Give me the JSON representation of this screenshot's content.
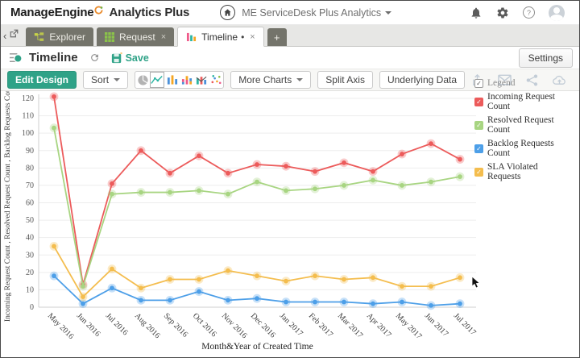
{
  "header": {
    "brand_primary": "ManageEngine",
    "brand_secondary": "Analytics Plus",
    "workspace_label": "ME ServiceDesk Plus Analytics"
  },
  "tabs": {
    "items": [
      {
        "label": "Explorer",
        "active": false
      },
      {
        "label": "Request",
        "active": false,
        "close": "×"
      },
      {
        "label": "Timeline",
        "active": true,
        "modified": "•",
        "close": "×"
      }
    ],
    "new_tab_label": "+"
  },
  "titlebar": {
    "title": "Timeline",
    "save_label": "Save",
    "settings_label": "Settings"
  },
  "toolbar": {
    "edit_design_label": "Edit Design",
    "sort_label": "Sort",
    "more_charts_label": "More Charts",
    "split_axis_label": "Split Axis",
    "underlying_data_label": "Underlying Data"
  },
  "legend": {
    "title": "Legend"
  },
  "icons": {
    "top_right": [
      "bell-icon",
      "gear-icon",
      "help-icon",
      "avatar"
    ],
    "chart_types": [
      "pie-chart-icon",
      "line-chart-icon",
      "bar-chart-icon",
      "stacked-bar-icon",
      "combo-chart-icon",
      "scatter-chart-icon"
    ],
    "toolbar_right": [
      "export-icon",
      "email-icon",
      "share-icon",
      "cloud-upload-icon"
    ]
  },
  "chart_data": {
    "type": "line",
    "x": [
      "May 2016",
      "Jun 2016",
      "Jul 2016",
      "Aug 2016",
      "Sep 2016",
      "Oct 2016",
      "Nov 2016",
      "Dec 2016",
      "Jan 2017",
      "Feb 2017",
      "Mar 2017",
      "Apr 2017",
      "May 2017",
      "Jun 2017",
      "Jul 2017"
    ],
    "series": [
      {
        "name": "Incoming Request Count",
        "color": "#ec5b5b",
        "values": [
          121,
          13,
          71,
          90,
          77,
          87,
          77,
          82,
          81,
          78,
          83,
          78,
          88,
          94,
          85
        ]
      },
      {
        "name": "Resolved Request Count",
        "color": "#a8d582",
        "values": [
          103,
          12,
          65,
          66,
          66,
          67,
          65,
          72,
          67,
          68,
          70,
          73,
          70,
          72,
          75
        ]
      },
      {
        "name": "Backlog Requests Count",
        "color": "#4d9fe8",
        "values": [
          18,
          2,
          11,
          4,
          4,
          9,
          4,
          5,
          3,
          3,
          3,
          2,
          3,
          1,
          2
        ]
      },
      {
        "name": "SLA Violated Requests",
        "color": "#f4bd4e",
        "values": [
          35,
          6,
          22,
          11,
          16,
          16,
          21,
          18,
          15,
          18,
          16,
          17,
          12,
          12,
          17
        ]
      }
    ],
    "ylim": [
      0,
      120
    ],
    "ytick_step": 10,
    "xlabel": "Month&Year of Created Time",
    "ylabel": "Incoming Request Count , Resolved Request Count , Backlog Requests Count , SLA Vio",
    "grid": true,
    "legend_position": "top-right"
  }
}
